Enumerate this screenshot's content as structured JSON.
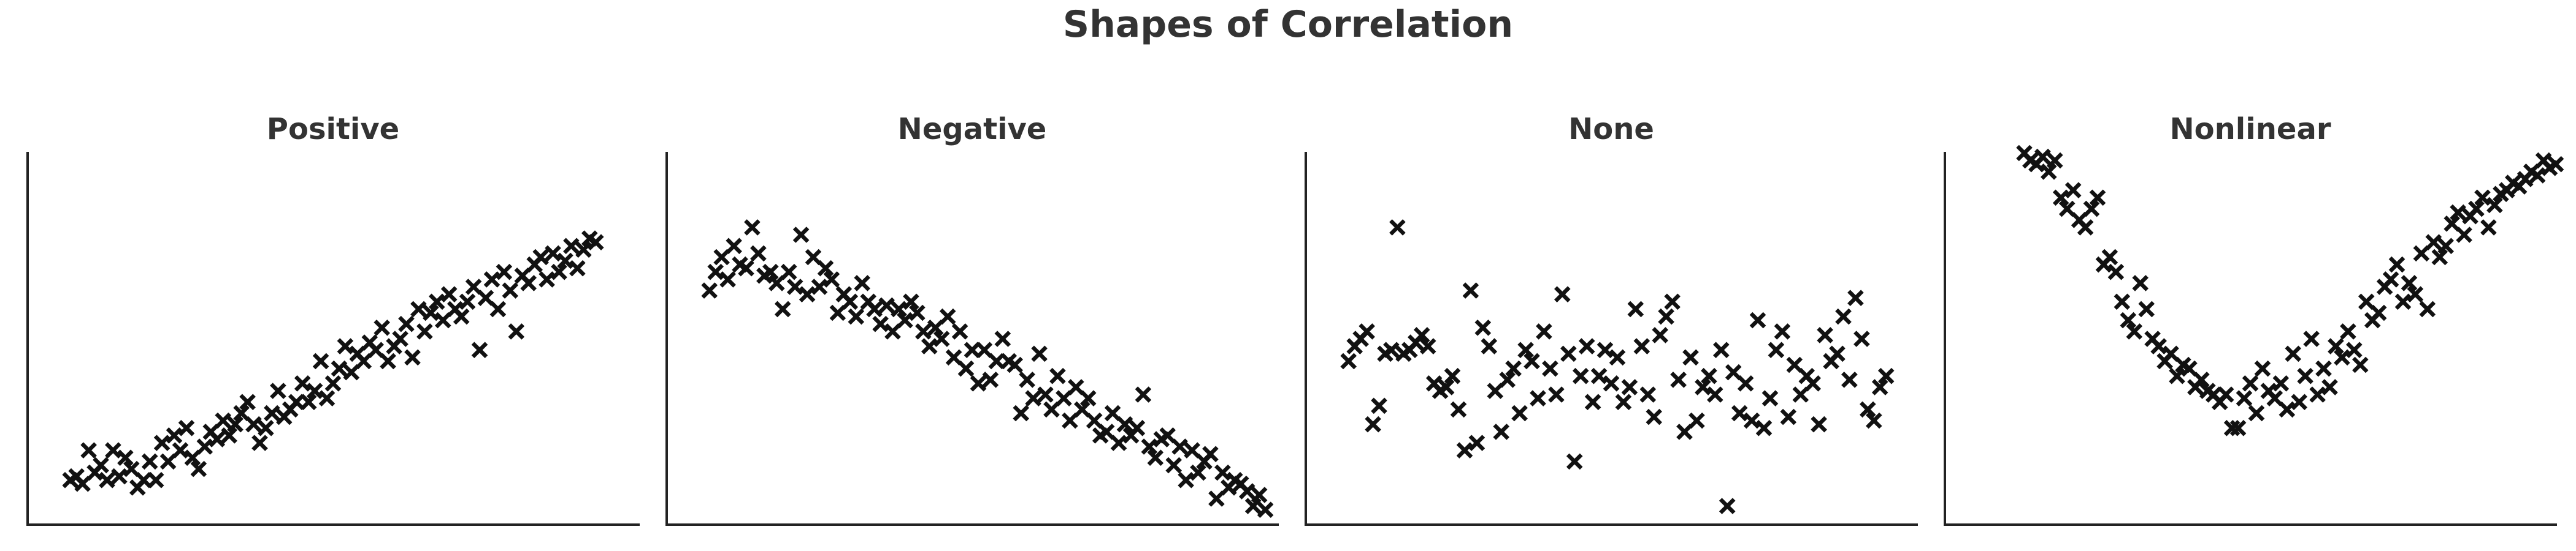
{
  "figure_title": "Shapes of Correlation",
  "chart_data": [
    {
      "type": "scatter",
      "title": "Positive",
      "xlabel": "",
      "ylabel": "",
      "xlim": [
        0,
        100
      ],
      "ylim": [
        0,
        100
      ],
      "grid": false,
      "marker": "x",
      "color": "#111111",
      "series": [
        {
          "x": [
            7,
            8,
            9,
            10,
            11,
            12,
            13,
            14,
            15,
            16,
            17,
            18,
            19,
            20,
            21,
            22,
            23,
            24,
            25,
            26,
            27,
            28,
            29,
            30,
            31,
            32,
            33,
            34,
            35,
            36,
            37,
            38,
            39,
            40,
            41,
            42,
            43,
            44,
            45,
            46,
            47,
            48,
            49,
            50,
            51,
            52,
            53,
            54,
            55,
            56,
            57,
            58,
            59,
            60,
            61,
            62,
            63,
            64,
            65,
            66,
            67,
            68,
            69,
            70,
            71,
            72,
            73,
            74,
            75,
            76,
            77,
            78,
            79,
            80,
            81,
            82,
            83,
            84,
            85,
            86,
            87,
            88,
            89,
            90,
            91,
            92,
            93
          ],
          "y": [
            12,
            13,
            11,
            20,
            14,
            16,
            12,
            20,
            13,
            18,
            15,
            10,
            12,
            17,
            12,
            22,
            17,
            24,
            20,
            26,
            18,
            15,
            21,
            25,
            23,
            28,
            24,
            27,
            30,
            33,
            27,
            22,
            26,
            30,
            36,
            29,
            31,
            33,
            38,
            33,
            36,
            44,
            34,
            38,
            42,
            48,
            41,
            46,
            44,
            49,
            47,
            53,
            44,
            48,
            50,
            54,
            45,
            58,
            52,
            57,
            60,
            55,
            62,
            58,
            56,
            60,
            64,
            47,
            61,
            66,
            58,
            68,
            63,
            52,
            67,
            65,
            70,
            72,
            66,
            73,
            68,
            71,
            75,
            69,
            74,
            77,
            76
          ]
        }
      ]
    },
    {
      "type": "scatter",
      "title": "Negative",
      "xlabel": "",
      "ylabel": "",
      "xlim": [
        0,
        100
      ],
      "ylim": [
        0,
        100
      ],
      "grid": false,
      "marker": "x",
      "color": "#111111",
      "series": [
        {
          "x": [
            7,
            8,
            9,
            10,
            11,
            12,
            13,
            14,
            15,
            16,
            17,
            18,
            19,
            20,
            21,
            22,
            23,
            24,
            25,
            26,
            27,
            28,
            29,
            30,
            31,
            32,
            33,
            34,
            35,
            36,
            37,
            38,
            39,
            40,
            41,
            42,
            43,
            44,
            45,
            46,
            47,
            48,
            49,
            50,
            51,
            52,
            53,
            54,
            55,
            56,
            57,
            58,
            59,
            60,
            61,
            62,
            63,
            64,
            65,
            66,
            67,
            68,
            69,
            70,
            71,
            72,
            73,
            74,
            75,
            76,
            77,
            78,
            79,
            80,
            81,
            82,
            83,
            84,
            85,
            86,
            87,
            88,
            89,
            90,
            91,
            92,
            93,
            94,
            95,
            96,
            97,
            98
          ],
          "y": [
            63,
            68,
            72,
            66,
            75,
            70,
            69,
            80,
            73,
            67,
            68,
            65,
            58,
            68,
            64,
            78,
            62,
            72,
            64,
            69,
            66,
            57,
            62,
            60,
            56,
            65,
            60,
            58,
            54,
            59,
            52,
            58,
            55,
            60,
            57,
            52,
            48,
            53,
            50,
            56,
            45,
            52,
            42,
            47,
            38,
            47,
            39,
            44,
            50,
            44,
            43,
            30,
            39,
            34,
            46,
            35,
            31,
            40,
            34,
            28,
            37,
            31,
            34,
            28,
            24,
            25,
            30,
            22,
            27,
            24,
            26,
            35,
            21,
            18,
            23,
            24,
            16,
            21,
            12,
            20,
            14,
            17,
            19,
            7,
            14,
            10,
            12,
            11,
            9,
            5,
            8,
            4
          ]
        }
      ]
    },
    {
      "type": "scatter",
      "title": "None",
      "xlabel": "",
      "ylabel": "",
      "xlim": [
        0,
        100
      ],
      "ylim": [
        0,
        100
      ],
      "grid": false,
      "marker": "x",
      "color": "#111111",
      "series": [
        {
          "x": [
            7,
            8,
            9,
            10,
            11,
            12,
            13,
            14,
            15,
            16,
            17,
            18,
            19,
            20,
            21,
            22,
            23,
            24,
            25,
            26,
            27,
            28,
            29,
            30,
            31,
            32,
            33,
            34,
            35,
            36,
            37,
            38,
            39,
            40,
            41,
            42,
            43,
            44,
            45,
            46,
            47,
            48,
            49,
            50,
            51,
            52,
            53,
            54,
            55,
            56,
            57,
            58,
            59,
            60,
            61,
            62,
            63,
            64,
            65,
            66,
            67,
            68,
            69,
            70,
            71,
            72,
            73,
            74,
            75,
            76,
            77,
            78,
            79,
            80,
            81,
            82,
            83,
            84,
            85,
            86,
            87,
            88,
            89,
            90,
            91,
            92,
            93,
            94,
            95
          ],
          "y": [
            44,
            48,
            50,
            52,
            27,
            32,
            46,
            47,
            80,
            46,
            47,
            49,
            51,
            48,
            38,
            36,
            37,
            40,
            31,
            20,
            63,
            22,
            53,
            48,
            36,
            25,
            39,
            42,
            30,
            47,
            44,
            34,
            52,
            42,
            35,
            62,
            46,
            17,
            40,
            48,
            33,
            40,
            47,
            38,
            45,
            33,
            37,
            58,
            48,
            35,
            29,
            51,
            56,
            60,
            39,
            25,
            45,
            28,
            37,
            40,
            35,
            47,
            5,
            41,
            30,
            38,
            28,
            55,
            26,
            34,
            47,
            52,
            29,
            43,
            35,
            40,
            38,
            27,
            51,
            44,
            46,
            56,
            39,
            61,
            50,
            31,
            28,
            37,
            40
          ]
        }
      ]
    },
    {
      "type": "scatter",
      "title": "Nonlinear",
      "xlabel": "",
      "ylabel": "",
      "xlim": [
        0,
        100
      ],
      "ylim": [
        0,
        100
      ],
      "grid": false,
      "marker": "x",
      "color": "#111111",
      "series": [
        {
          "x": [
            13,
            14,
            15,
            16,
            17,
            18,
            19,
            20,
            21,
            22,
            23,
            24,
            25,
            26,
            27,
            28,
            29,
            30,
            31,
            32,
            33,
            34,
            35,
            36,
            37,
            38,
            39,
            40,
            41,
            42,
            43,
            44,
            45,
            46,
            47,
            48,
            49,
            50,
            51,
            52,
            53,
            54,
            55,
            56,
            57,
            58,
            59,
            60,
            61,
            62,
            63,
            64,
            65,
            66,
            67,
            68,
            69,
            70,
            71,
            72,
            73,
            74,
            75,
            76,
            77,
            78,
            79,
            80,
            81,
            82,
            83,
            84,
            85,
            86,
            87,
            88,
            89,
            90,
            91,
            92,
            93,
            94,
            95,
            96,
            97,
            98,
            99,
            100
          ],
          "y": [
            100,
            98,
            97,
            99,
            95,
            98,
            88,
            85,
            90,
            82,
            80,
            85,
            88,
            70,
            72,
            68,
            60,
            55,
            52,
            65,
            58,
            50,
            48,
            44,
            46,
            40,
            43,
            42,
            37,
            39,
            36,
            35,
            33,
            35,
            26,
            26,
            34,
            38,
            30,
            42,
            36,
            34,
            38,
            31,
            46,
            33,
            40,
            50,
            35,
            42,
            37,
            48,
            45,
            52,
            47,
            43,
            60,
            55,
            57,
            64,
            66,
            70,
            60,
            65,
            62,
            73,
            58,
            76,
            72,
            75,
            81,
            84,
            78,
            83,
            85,
            88,
            80,
            86,
            89,
            90,
            92,
            91,
            93,
            95,
            94,
            98,
            96,
            97
          ]
        }
      ]
    }
  ]
}
